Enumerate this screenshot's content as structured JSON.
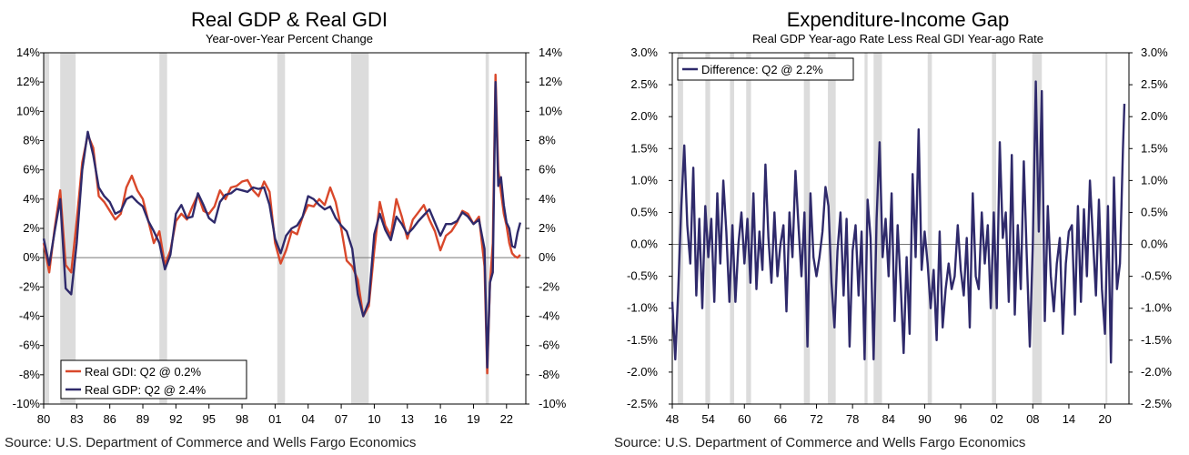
{
  "colors": {
    "gdi": "#d9482b",
    "gdp": "#2f2a6b",
    "recession": "#dcdcdc",
    "axis": "#000000",
    "zero": "#777777"
  },
  "chart_data": [
    {
      "type": "line",
      "title": "Real GDP & Real GDI",
      "subtitle": "Year-over-Year Percent Change",
      "source": "Source: U.S. Department of Commerce and Wells Fargo Economics",
      "xlim": [
        1980,
        2023.75
      ],
      "ylim": [
        -10,
        14
      ],
      "x_tick_values": [
        1980,
        1983,
        1986,
        1989,
        1992,
        1995,
        1998,
        2001,
        2004,
        2007,
        2010,
        2013,
        2016,
        2019,
        2022
      ],
      "x_tick_labels": [
        "80",
        "83",
        "86",
        "89",
        "92",
        "95",
        "98",
        "01",
        "04",
        "07",
        "10",
        "13",
        "16",
        "19",
        "22"
      ],
      "y_ticks": [
        14,
        12,
        10,
        8,
        6,
        4,
        2,
        0,
        -2,
        -4,
        -6,
        -8,
        -10
      ],
      "y_tick_labels": [
        "14%",
        "12%",
        "10%",
        "8%",
        "6%",
        "4%",
        "2%",
        "0%",
        "-2%",
        "-4%",
        "-6%",
        "-8%",
        "-10%"
      ],
      "recessions": [
        [
          1980.0,
          1980.5
        ],
        [
          1981.5,
          1982.9
        ],
        [
          1990.5,
          1991.2
        ],
        [
          2001.2,
          2001.9
        ],
        [
          2007.9,
          2009.5
        ],
        [
          2020.1,
          2020.4
        ]
      ],
      "legend": [
        "Real GDI: Q2 @ 0.2%",
        "Real GDP: Q2 @ 2.4%"
      ],
      "series": [
        {
          "name": "Real GDI: Q2 @ 0.2%",
          "x": [
            1980.0,
            1980.5,
            1981.0,
            1981.5,
            1982.0,
            1982.5,
            1983.0,
            1983.5,
            1984.0,
            1984.5,
            1985.0,
            1985.5,
            1986.0,
            1986.5,
            1987.0,
            1987.5,
            1988.0,
            1988.5,
            1989.0,
            1989.5,
            1990.0,
            1990.5,
            1991.0,
            1991.5,
            1992.0,
            1992.5,
            1993.0,
            1993.5,
            1994.0,
            1994.5,
            1995.0,
            1995.5,
            1996.0,
            1996.5,
            1997.0,
            1997.5,
            1998.0,
            1998.5,
            1999.0,
            1999.5,
            2000.0,
            2000.5,
            2001.0,
            2001.5,
            2002.0,
            2002.5,
            2003.0,
            2003.5,
            2004.0,
            2004.5,
            2005.0,
            2005.5,
            2006.0,
            2006.5,
            2007.0,
            2007.5,
            2008.0,
            2008.5,
            2009.0,
            2009.5,
            2010.0,
            2010.5,
            2011.0,
            2011.5,
            2012.0,
            2012.5,
            2013.0,
            2013.5,
            2014.0,
            2014.5,
            2015.0,
            2015.5,
            2016.0,
            2016.5,
            2017.0,
            2017.5,
            2018.0,
            2018.5,
            2019.0,
            2019.5,
            2020.0,
            2020.25,
            2020.5,
            2020.75,
            2021.0,
            2021.25,
            2021.5,
            2021.75,
            2022.0,
            2022.25,
            2022.5,
            2022.75,
            2023.0,
            2023.25
          ],
          "values": [
            1.0,
            -1.0,
            2.0,
            4.6,
            -0.5,
            -1.0,
            2.5,
            6.5,
            8.4,
            7.5,
            4.2,
            3.8,
            3.2,
            2.6,
            3.0,
            4.8,
            5.6,
            4.6,
            4.0,
            2.5,
            1.0,
            1.8,
            -0.5,
            0.5,
            2.5,
            3.0,
            2.6,
            3.5,
            4.3,
            3.2,
            3.0,
            3.5,
            4.6,
            4.0,
            4.8,
            4.9,
            5.2,
            5.3,
            4.6,
            4.2,
            5.2,
            4.5,
            1.0,
            -0.4,
            0.5,
            1.8,
            1.6,
            2.8,
            3.6,
            3.5,
            4.0,
            3.6,
            4.8,
            3.8,
            2.0,
            -0.2,
            -0.6,
            -1.5,
            -4.0,
            -3.3,
            0.5,
            3.8,
            2.2,
            1.5,
            4.0,
            2.8,
            1.3,
            2.6,
            3.1,
            3.6,
            2.6,
            1.8,
            0.5,
            1.5,
            1.8,
            2.4,
            3.2,
            3.0,
            2.3,
            2.8,
            -0.6,
            -7.9,
            -1.8,
            1.0,
            12.5,
            6.0,
            4.5,
            3.0,
            2.2,
            1.0,
            0.3,
            0.1,
            0.0,
            0.2
          ]
        },
        {
          "name": "Real GDP: Q2 @ 2.4%",
          "x": [
            1980.0,
            1980.5,
            1981.0,
            1981.5,
            1982.0,
            1982.5,
            1983.0,
            1983.5,
            1984.0,
            1984.5,
            1985.0,
            1985.5,
            1986.0,
            1986.5,
            1987.0,
            1987.5,
            1988.0,
            1988.5,
            1989.0,
            1989.5,
            1990.0,
            1990.5,
            1991.0,
            1991.5,
            1992.0,
            1992.5,
            1993.0,
            1993.5,
            1994.0,
            1994.5,
            1995.0,
            1995.5,
            1996.0,
            1996.5,
            1997.0,
            1997.5,
            1998.0,
            1998.5,
            1999.0,
            1999.5,
            2000.0,
            2000.5,
            2001.0,
            2001.5,
            2002.0,
            2002.5,
            2003.0,
            2003.5,
            2004.0,
            2004.5,
            2005.0,
            2005.5,
            2006.0,
            2006.5,
            2007.0,
            2007.5,
            2008.0,
            2008.5,
            2009.0,
            2009.5,
            2010.0,
            2010.5,
            2011.0,
            2011.5,
            2012.0,
            2012.5,
            2013.0,
            2013.5,
            2014.0,
            2014.5,
            2015.0,
            2015.5,
            2016.0,
            2016.5,
            2017.0,
            2017.5,
            2018.0,
            2018.5,
            2019.0,
            2019.5,
            2020.0,
            2020.25,
            2020.5,
            2020.75,
            2021.0,
            2021.25,
            2021.5,
            2021.75,
            2022.0,
            2022.25,
            2022.5,
            2022.75,
            2023.0,
            2023.25
          ],
          "values": [
            1.3,
            -0.5,
            1.8,
            4.0,
            -2.1,
            -2.5,
            1.0,
            6.0,
            8.6,
            7.0,
            4.8,
            4.2,
            3.8,
            3.0,
            3.2,
            4.0,
            4.2,
            3.8,
            3.5,
            2.5,
            1.8,
            1.0,
            -0.8,
            0.2,
            3.0,
            3.6,
            2.7,
            2.8,
            4.4,
            3.6,
            2.7,
            2.4,
            3.8,
            4.3,
            4.4,
            4.7,
            4.6,
            4.5,
            4.8,
            4.7,
            4.8,
            3.6,
            1.3,
            0.3,
            1.5,
            2.0,
            2.2,
            2.8,
            4.2,
            4.0,
            3.6,
            3.3,
            3.5,
            2.7,
            2.2,
            1.8,
            0.6,
            -2.5,
            -4.0,
            -3.0,
            1.6,
            3.0,
            1.9,
            1.2,
            2.8,
            2.3,
            1.6,
            2.0,
            2.5,
            2.9,
            3.3,
            2.4,
            1.5,
            2.3,
            2.3,
            2.5,
            3.1,
            2.8,
            2.3,
            2.6,
            0.6,
            -7.5,
            -1.7,
            -1.0,
            12.0,
            4.9,
            5.5,
            3.6,
            2.4,
            2.0,
            0.8,
            0.7,
            1.7,
            2.4
          ]
        }
      ]
    },
    {
      "type": "line",
      "title": "Expenditure-Income Gap",
      "subtitle": "Real GDP Year-ago Rate Less Real GDI Year-ago Rate",
      "source": "Source: U.S. Department of Commerce and Wells Fargo Economics",
      "xlim": [
        1948,
        2024
      ],
      "ylim": [
        -2.5,
        3.0
      ],
      "x_tick_values": [
        1948,
        1954,
        1960,
        1966,
        1972,
        1978,
        1984,
        1990,
        1996,
        2002,
        2008,
        2014,
        2020
      ],
      "x_tick_labels": [
        "48",
        "54",
        "60",
        "66",
        "72",
        "78",
        "84",
        "90",
        "96",
        "02",
        "08",
        "14",
        "20"
      ],
      "y_ticks": [
        3.0,
        2.5,
        2.0,
        1.5,
        1.0,
        0.5,
        0.0,
        -0.5,
        -1.0,
        -1.5,
        -2.0,
        -2.5
      ],
      "y_tick_labels": [
        "3.0%",
        "2.5%",
        "2.0%",
        "1.5%",
        "1.0%",
        "0.5%",
        "0.0%",
        "-0.5%",
        "-1.0%",
        "-1.5%",
        "-2.0%",
        "-2.5%"
      ],
      "recessions": [
        [
          1948.9,
          1949.8
        ],
        [
          1953.5,
          1954.3
        ],
        [
          1957.6,
          1958.3
        ],
        [
          1960.3,
          1961.1
        ],
        [
          1969.9,
          1970.9
        ],
        [
          1973.9,
          1975.2
        ],
        [
          1980.0,
          1980.5
        ],
        [
          1981.5,
          1982.9
        ],
        [
          1990.5,
          1991.2
        ],
        [
          2001.2,
          2001.9
        ],
        [
          2007.9,
          2009.5
        ],
        [
          2020.1,
          2020.4
        ]
      ],
      "legend": [
        "Difference: Q2 @ 2.2%"
      ],
      "series": [
        {
          "name": "Difference: Q2 @ 2.2%",
          "x": [
            1948.0,
            1948.5,
            1949.0,
            1949.5,
            1950.0,
            1950.5,
            1951.0,
            1951.5,
            1952.0,
            1952.5,
            1953.0,
            1953.5,
            1954.0,
            1954.5,
            1955.0,
            1955.5,
            1956.0,
            1956.5,
            1957.0,
            1957.5,
            1958.0,
            1958.5,
            1959.0,
            1959.5,
            1960.0,
            1960.5,
            1961.0,
            1961.5,
            1962.0,
            1962.5,
            1963.0,
            1963.5,
            1964.0,
            1964.5,
            1965.0,
            1965.5,
            1966.0,
            1966.5,
            1967.0,
            1967.5,
            1968.0,
            1968.5,
            1969.0,
            1969.5,
            1970.0,
            1970.5,
            1971.0,
            1971.5,
            1972.0,
            1972.5,
            1973.0,
            1973.5,
            1974.0,
            1974.5,
            1975.0,
            1975.5,
            1976.0,
            1976.5,
            1977.0,
            1977.5,
            1978.0,
            1978.5,
            1979.0,
            1979.5,
            1980.0,
            1980.5,
            1981.0,
            1981.5,
            1982.0,
            1982.5,
            1983.0,
            1983.5,
            1984.0,
            1984.5,
            1985.0,
            1985.5,
            1986.0,
            1986.5,
            1987.0,
            1987.5,
            1988.0,
            1988.5,
            1989.0,
            1989.5,
            1990.0,
            1990.5,
            1991.0,
            1991.5,
            1992.0,
            1992.5,
            1993.0,
            1993.5,
            1994.0,
            1994.5,
            1995.0,
            1995.5,
            1996.0,
            1996.5,
            1997.0,
            1997.5,
            1998.0,
            1998.5,
            1999.0,
            1999.5,
            2000.0,
            2000.5,
            2001.0,
            2001.5,
            2002.0,
            2002.5,
            2003.0,
            2003.5,
            2004.0,
            2004.5,
            2005.0,
            2005.5,
            2006.0,
            2006.5,
            2007.0,
            2007.5,
            2008.0,
            2008.5,
            2009.0,
            2009.5,
            2010.0,
            2010.5,
            2011.0,
            2011.5,
            2012.0,
            2012.5,
            2013.0,
            2013.5,
            2014.0,
            2014.5,
            2015.0,
            2015.5,
            2016.0,
            2016.5,
            2017.0,
            2017.5,
            2018.0,
            2018.5,
            2019.0,
            2019.5,
            2020.0,
            2020.5,
            2021.0,
            2021.5,
            2022.0,
            2022.5,
            2023.0,
            2023.25
          ],
          "values": [
            -0.9,
            -1.8,
            -0.7,
            0.6,
            1.55,
            0.3,
            -0.3,
            1.2,
            -0.8,
            0.4,
            -1.0,
            0.6,
            -0.2,
            0.4,
            -0.9,
            0.8,
            -0.3,
            1.0,
            0.2,
            -0.9,
            0.3,
            -0.9,
            0.0,
            0.5,
            -0.3,
            0.4,
            -0.6,
            0.8,
            -0.7,
            0.2,
            -0.4,
            1.25,
            0.1,
            -0.6,
            0.5,
            -0.5,
            0.0,
            0.3,
            -1.05,
            0.5,
            -0.2,
            1.15,
            0.3,
            -0.5,
            0.5,
            -1.6,
            0.8,
            -0.2,
            -0.5,
            -0.2,
            0.2,
            0.9,
            0.6,
            -0.6,
            -1.3,
            -0.1,
            0.5,
            -0.8,
            0.4,
            -1.6,
            -0.1,
            0.3,
            -0.8,
            0.2,
            -1.8,
            0.7,
            0.1,
            -1.8,
            0.4,
            1.6,
            -0.2,
            0.4,
            -0.5,
            0.8,
            -1.2,
            0.3,
            -0.6,
            -1.7,
            -0.2,
            -1.4,
            1.1,
            -0.2,
            1.8,
            -0.4,
            0.2,
            -0.3,
            -1.0,
            -0.4,
            -1.5,
            0.2,
            -1.3,
            -0.7,
            -0.3,
            -0.7,
            -0.5,
            0.3,
            -0.4,
            -0.8,
            0.1,
            -1.3,
            0.8,
            -0.5,
            -0.7,
            0.5,
            -0.3,
            0.3,
            -1.0,
            0.5,
            -1.0,
            1.6,
            0.1,
            0.5,
            -0.9,
            1.4,
            -1.1,
            0.3,
            -0.7,
            1.3,
            -0.2,
            -1.6,
            0.0,
            2.55,
            0.2,
            2.4,
            -1.2,
            0.6,
            -0.5,
            -1.05,
            -0.3,
            0.1,
            -1.4,
            -0.3,
            0.2,
            0.3,
            -1.1,
            0.6,
            -0.9,
            0.55,
            -0.5,
            1.0,
            0.1,
            -0.8,
            0.7,
            -0.7,
            -1.4,
            0.6,
            -1.85,
            1.05,
            -0.7,
            -0.3,
            1.5,
            2.2
          ]
        }
      ]
    }
  ]
}
